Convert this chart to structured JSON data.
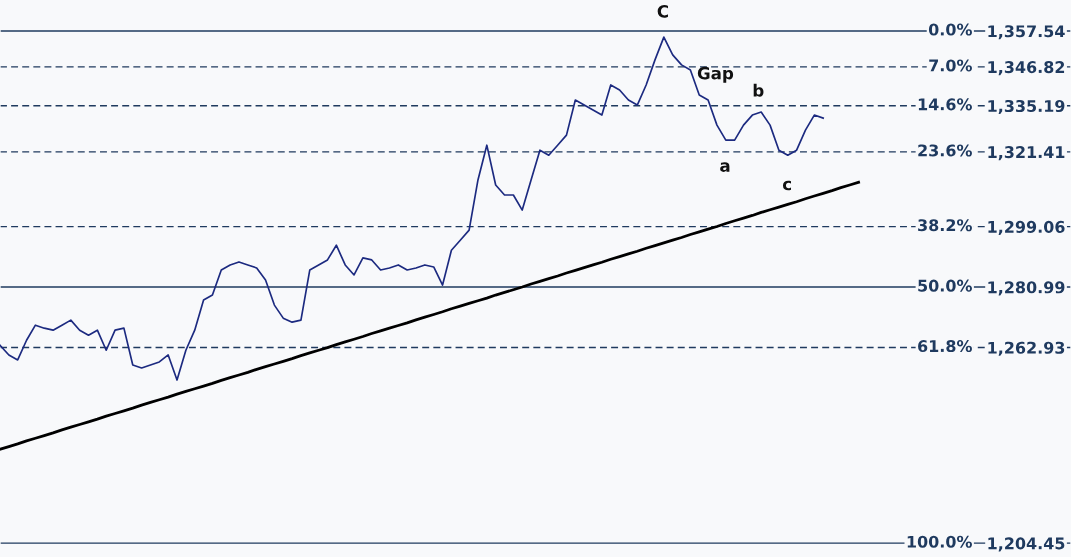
{
  "chart_data": {
    "type": "line",
    "tick_labels": "y",
    "categories": [
      null,
      null,
      null,
      null,
      null,
      null,
      null,
      null,
      null,
      null,
      null,
      null,
      null,
      null,
      null,
      null,
      null,
      null,
      null,
      null,
      null,
      null,
      null,
      null,
      null,
      null,
      null,
      null,
      null,
      null,
      null,
      null,
      null,
      null,
      null,
      null,
      null,
      null,
      null,
      null,
      null,
      null,
      null,
      null,
      null,
      null,
      null,
      null,
      null,
      null,
      null,
      null,
      null,
      null,
      null,
      null,
      null,
      null,
      null,
      null,
      null,
      null,
      null,
      null,
      null,
      null,
      null,
      null,
      null,
      null,
      null,
      null,
      null,
      null,
      null,
      null,
      null,
      null,
      null,
      null,
      null,
      null,
      null,
      null,
      null,
      null,
      null,
      null,
      null,
      null,
      null,
      null,
      null,
      null,
      null,
      null,
      null,
      null,
      null,
      null,
      null,
      null,
      null,
      null,
      null,
      null,
      null,
      null,
      null,
      null,
      null,
      null,
      null,
      null,
      null,
      null,
      null,
      null,
      null,
      null,
      null,
      null
    ],
    "ylim": [
      1200.3,
      1366.8
    ],
    "yticks": [
      {
        "value": 1357.54,
        "label": "1,357.54"
      },
      {
        "value": 1346.82,
        "label": "1,346.82"
      },
      {
        "value": 1335.19,
        "label": "1,335.19"
      },
      {
        "value": 1321.41,
        "label": "1,321.41"
      },
      {
        "value": 1299.06,
        "label": "1,299.06"
      },
      {
        "value": 1280.99,
        "label": "1,280.99"
      },
      {
        "value": 1262.93,
        "label": "1,262.93"
      },
      {
        "value": 1204.45,
        "label": "1,204.45"
      }
    ],
    "series": [
      {
        "color": "#1c2a80",
        "values": [
          1263.6,
          1260.7,
          1259.2,
          1265.1,
          1269.6,
          1268.7,
          1268.1,
          1269.6,
          1271.1,
          1268.1,
          1266.6,
          1268.1,
          1262.1,
          1268.1,
          1268.7,
          1257.7,
          1256.8,
          1257.7,
          1258.6,
          1260.7,
          1253.2,
          1262.1,
          1268.1,
          1277.1,
          1278.6,
          1286.1,
          1287.6,
          1288.5,
          1287.6,
          1286.7,
          1283.1,
          1275.6,
          1271.7,
          1270.5,
          1271.1,
          1286.1,
          1287.6,
          1289.1,
          1293.5,
          1287.6,
          1284.6,
          1289.7,
          1289.1,
          1286.1,
          1286.7,
          1287.6,
          1286.1,
          1286.7,
          1287.6,
          1287.0,
          1281.6,
          1292.0,
          1295.0,
          1298.0,
          1313.0,
          1323.4,
          1311.5,
          1308.5,
          1308.5,
          1304.0,
          1313.0,
          1321.9,
          1320.4,
          1323.4,
          1326.4,
          1336.9,
          1335.4,
          1333.9,
          1332.4,
          1341.4,
          1339.9,
          1336.9,
          1335.4,
          1341.4,
          1348.9,
          1355.7,
          1350.4,
          1347.4,
          1345.9,
          1338.4,
          1336.9,
          1329.4,
          1324.9,
          1324.9,
          1329.4,
          1332.4,
          1333.3,
          1329.4,
          1321.9,
          1320.4,
          1321.9,
          1327.9,
          1332.4,
          1331.5,
          null,
          null,
          null,
          null,
          null,
          null,
          null,
          null,
          null,
          null,
          null,
          null,
          null,
          null,
          null,
          null,
          null,
          null,
          null,
          null,
          null,
          null,
          null,
          null,
          null,
          null,
          null,
          null
        ]
      },
      {
        "type": "line",
        "color": "#000000",
        "values": [
          1232.5,
          1233.3,
          1234.1,
          1235.0,
          1235.8,
          1236.6,
          1237.4,
          1238.3,
          1239.1,
          1239.9,
          1240.7,
          1241.5,
          1242.4,
          1243.2,
          1244.0,
          1244.8,
          1245.7,
          1246.5,
          1247.3,
          1248.1,
          1249.0,
          1249.8,
          1250.6,
          1251.4,
          1252.2,
          1253.1,
          1253.9,
          1254.7,
          1255.5,
          1256.4,
          1257.2,
          1258.0,
          1258.8,
          1259.6,
          1260.5,
          1261.3,
          1262.1,
          1262.9,
          1263.8,
          1264.6,
          1265.4,
          1266.2,
          1267.1,
          1267.9,
          1268.7,
          1269.5,
          1270.3,
          1271.2,
          1272.0,
          1272.8,
          1273.6,
          1274.5,
          1275.3,
          1276.1,
          1276.9,
          1277.7,
          1278.6,
          1279.4,
          1280.2,
          1281.0,
          1281.9,
          1282.7,
          1283.5,
          1284.3,
          1285.2,
          1286.0,
          1286.8,
          1287.6,
          1288.4,
          1289.3,
          1290.1,
          1290.9,
          1291.7,
          1292.6,
          1293.4,
          1294.2,
          1295.0,
          1295.8,
          1296.7,
          1297.5,
          1298.3,
          1299.1,
          1300.0,
          1300.8,
          1301.6,
          1302.4,
          1303.3,
          1304.1,
          1304.9,
          1305.7,
          1306.5,
          1307.4,
          1308.2,
          1309.0,
          1309.8,
          1310.7,
          1311.5,
          1312.3,
          null,
          null,
          null,
          null,
          null,
          null,
          null,
          null,
          null,
          null,
          null,
          null,
          null,
          null,
          null,
          null,
          null,
          null,
          null,
          null,
          null,
          null,
          null,
          null
        ]
      }
    ],
    "ref_lines": [
      {
        "axis": "y",
        "value": 1357.54,
        "color": "#1f3a5f",
        "line_style": "solid"
      },
      {
        "axis": "y",
        "value": 1346.82,
        "color": "#1f3a5f",
        "line_style": "dashed"
      },
      {
        "axis": "y",
        "value": 1335.19,
        "color": "#1f3a5f",
        "line_style": "dashed"
      },
      {
        "axis": "y",
        "value": 1321.41,
        "color": "#1f3a5f",
        "line_style": "dashed"
      },
      {
        "axis": "y",
        "value": 1299.06,
        "color": "#1f3a5f",
        "line_style": "dashed"
      },
      {
        "axis": "y",
        "value": 1280.99,
        "color": "#1f3a5f",
        "line_style": "solid"
      },
      {
        "axis": "y",
        "value": 1262.93,
        "color": "#1f3a5f",
        "line_style": "dashed"
      },
      {
        "axis": "y",
        "value": 1204.45,
        "color": "#1f3a5f",
        "line_style": "solid"
      }
    ],
    "annotations": [
      "C",
      "Gap",
      "b",
      "a",
      "c",
      "0.0%",
      "7.0%",
      "14.6%",
      "23.6%",
      "38.2%",
      "50.0%",
      "61.8%",
      "100.0%"
    ]
  }
}
